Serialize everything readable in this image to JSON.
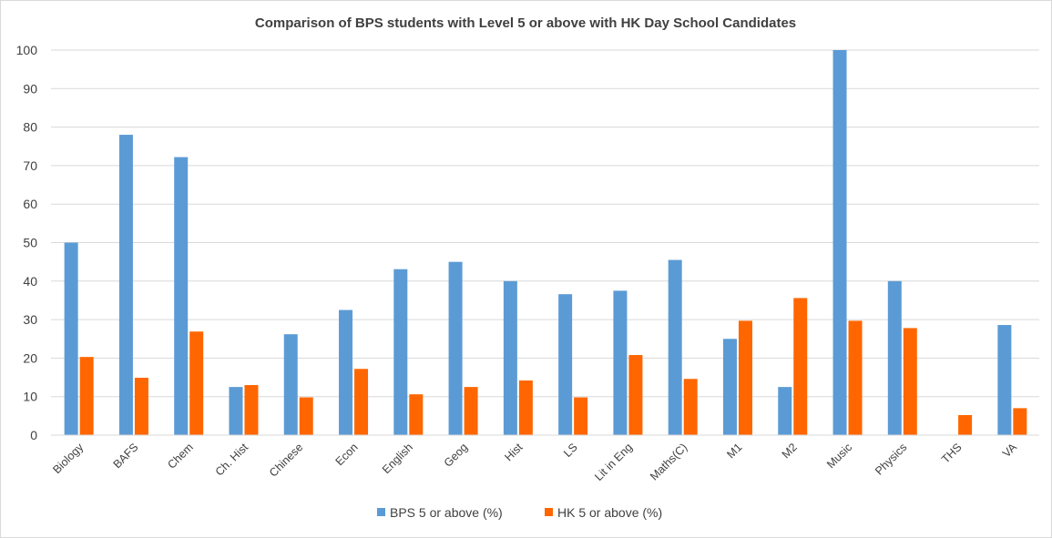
{
  "chart_data": {
    "type": "bar",
    "title": "Comparison of BPS students with Level 5 or above with HK Day School Candidates",
    "xlabel": "",
    "ylabel": "",
    "ylim": [
      0,
      100
    ],
    "yticks": [
      0,
      10,
      20,
      30,
      40,
      50,
      60,
      70,
      80,
      90,
      100
    ],
    "grid": true,
    "legend_position": "bottom",
    "categories": [
      "Biology",
      "BAFS",
      "Chem",
      "Ch. Hist",
      "Chinese",
      "Econ",
      "English",
      "Geog",
      "Hist",
      "LS",
      "Lit in Eng",
      "Maths(C)",
      "M1",
      "M2",
      "Music",
      "Physics",
      "THS",
      "VA"
    ],
    "series": [
      {
        "name": "BPS 5 or above (%)",
        "color": "#5b9bd5",
        "values": [
          50,
          78,
          72.2,
          12.5,
          26.2,
          32.5,
          43.1,
          45,
          40,
          36.6,
          37.5,
          45.5,
          25,
          12.5,
          100,
          40,
          0,
          28.6
        ]
      },
      {
        "name": "HK 5 or above (%)",
        "color": "#ff6600",
        "values": [
          20.3,
          14.9,
          26.9,
          13,
          9.8,
          17.2,
          10.6,
          12.5,
          14.2,
          9.8,
          20.8,
          14.6,
          29.7,
          35.6,
          29.7,
          27.8,
          5.2,
          7
        ]
      }
    ]
  }
}
